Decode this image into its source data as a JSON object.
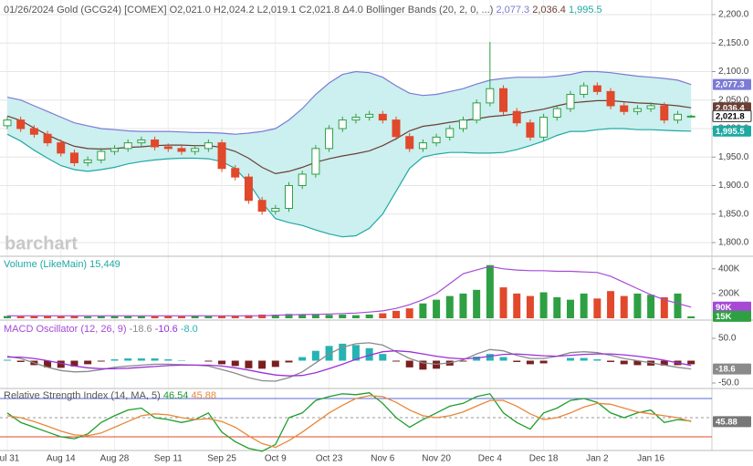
{
  "chart_data": [
    {
      "type": "candlestick",
      "title": "01/26/2024 Gold (GCG24) [COMEX]",
      "summary": [
        "O2,021.0",
        "H2,024.2",
        "L2,019.1",
        "C2,021.8",
        "Δ4.0"
      ],
      "watermark": "barchart",
      "categories": [
        "Jul 31",
        null,
        null,
        null,
        "Aug 14",
        null,
        null,
        null,
        "Aug 28",
        null,
        null,
        null,
        "Sep 11",
        null,
        null,
        null,
        "Sep 25",
        null,
        null,
        null,
        "Oct 9",
        null,
        null,
        null,
        "Oct 23",
        null,
        null,
        null,
        "Nov 6",
        null,
        null,
        null,
        "Nov 20",
        null,
        null,
        null,
        "Dec 4",
        null,
        null,
        null,
        "Dec 18",
        null,
        null,
        null,
        "Jan 2",
        null,
        null,
        null,
        "Jan 16",
        null,
        null,
        null
      ],
      "open": [
        2005,
        2015,
        2000,
        1990,
        1975,
        1957,
        1940,
        1945,
        1960,
        1965,
        1975,
        1980,
        1968,
        1965,
        1960,
        1965,
        1975,
        1930,
        1915,
        1874,
        1855,
        1860,
        1900,
        1920,
        1965,
        2000,
        2015,
        2020,
        2025,
        2015,
        1986,
        1965,
        1975,
        1985,
        2000,
        2015,
        2045,
        2070,
        2030,
        2010,
        1985,
        2020,
        2035,
        2060,
        2075,
        2065,
        2040,
        2030,
        2035,
        2040,
        2015,
        2021.0
      ],
      "high": [
        2021,
        2021,
        2006,
        1996,
        1981,
        1963,
        1951,
        1966,
        1971,
        1981,
        1986,
        1986,
        1974,
        1971,
        1971,
        1981,
        1981,
        1936,
        1921,
        1880,
        1866,
        1906,
        1926,
        1971,
        2006,
        2021,
        2026,
        2031,
        2031,
        2021,
        1992,
        1981,
        1991,
        2006,
        2021,
        2051,
        2152,
        2076,
        2036,
        2016,
        2026,
        2041,
        2066,
        2081,
        2081,
        2071,
        2046,
        2041,
        2046,
        2046,
        2031,
        2024.2
      ],
      "low": [
        1999,
        1994,
        1984,
        1969,
        1951,
        1934,
        1934,
        1939,
        1954,
        1959,
        1969,
        1962,
        1959,
        1954,
        1954,
        1959,
        1924,
        1909,
        1868,
        1849,
        1849,
        1854,
        1894,
        1914,
        1959,
        1994,
        2009,
        2014,
        2009,
        1980,
        1959,
        1959,
        1969,
        1979,
        1994,
        2009,
        2039,
        2024,
        2004,
        1979,
        1979,
        2014,
        2029,
        2054,
        2059,
        2034,
        2024,
        2024,
        2029,
        2009,
        2009,
        2019.1
      ],
      "close": [
        2015,
        2000,
        1990,
        1975,
        1957,
        1940,
        1945,
        1960,
        1965,
        1975,
        1980,
        1968,
        1965,
        1960,
        1965,
        1975,
        1930,
        1915,
        1874,
        1855,
        1860,
        1900,
        1920,
        1965,
        2000,
        2015,
        2020,
        2025,
        2015,
        1986,
        1965,
        1975,
        1985,
        2000,
        2015,
        2045,
        2070,
        2030,
        2010,
        1985,
        2020,
        2035,
        2060,
        2075,
        2065,
        2040,
        2030,
        2035,
        2040,
        2015,
        2025,
        2021.8
      ],
      "close_label": "2,021.8",
      "up_color": "#2ea043",
      "down_color": "#e0492b",
      "overlay_title": "Bollinger Bands (20, 2, 0, ...)",
      "band_fill": "#ccefef",
      "bands": [
        {
          "color": "#7b7bd6",
          "last_label": "2,077.3",
          "values": [
            2055,
            2050,
            2040,
            2030,
            2020,
            2010,
            2005,
            2000,
            1998,
            1996,
            1995,
            1995,
            1995,
            1994,
            1993,
            1993,
            1992,
            1990,
            1992,
            1995,
            2000,
            2015,
            2035,
            2060,
            2080,
            2095,
            2100,
            2098,
            2090,
            2075,
            2062,
            2058,
            2060,
            2065,
            2070,
            2078,
            2085,
            2088,
            2090,
            2090,
            2090,
            2092,
            2095,
            2100,
            2100,
            2098,
            2095,
            2092,
            2090,
            2088,
            2085,
            2077.3
          ]
        },
        {
          "color": "#6b3f35",
          "last_label": "2,036.4",
          "values": [
            2022,
            2014,
            2001,
            1989,
            1978,
            1969,
            1965,
            1964,
            1965,
            1967,
            1968,
            1970,
            1971,
            1971,
            1970,
            1970,
            1967,
            1960,
            1948,
            1932,
            1921,
            1925,
            1932,
            1941,
            1947,
            1952,
            1956,
            1961,
            1970,
            1982,
            1996,
            2004,
            2007,
            2011,
            2014,
            2017,
            2021,
            2023,
            2026,
            2030,
            2034,
            2040,
            2045,
            2047,
            2049,
            2049,
            2047,
            2045,
            2044,
            2042,
            2040,
            2036.4
          ]
        },
        {
          "color": "#1fa9a3",
          "last_label": "1,995.5",
          "values": [
            1990,
            1978,
            1962,
            1948,
            1935,
            1928,
            1925,
            1928,
            1932,
            1938,
            1942,
            1945,
            1947,
            1948,
            1948,
            1947,
            1942,
            1930,
            1905,
            1870,
            1842,
            1835,
            1830,
            1822,
            1815,
            1810,
            1812,
            1825,
            1850,
            1890,
            1930,
            1950,
            1955,
            1958,
            1958,
            1957,
            1957,
            1958,
            1963,
            1970,
            1978,
            1988,
            1995,
            1995,
            1998,
            2000,
            2000,
            1998,
            1998,
            1997,
            1996,
            1995.5
          ]
        }
      ],
      "ylim": [
        1780,
        2215
      ],
      "yticks": [
        {
          "value": 2200,
          "label": "2,200.0"
        },
        {
          "value": 2150,
          "label": "2,150.0"
        },
        {
          "value": 2100,
          "label": "2,100.0"
        },
        {
          "value": 2050,
          "label": "2,050.0"
        },
        {
          "value": 2000,
          "label": "2,000.0"
        },
        {
          "value": 1950,
          "label": "1,950.0"
        },
        {
          "value": 1900,
          "label": "1,900.0"
        },
        {
          "value": 1850,
          "label": "1,850.0"
        },
        {
          "value": 1800,
          "label": "1,800.0"
        }
      ],
      "grid": true
    },
    {
      "type": "bar",
      "title": "Volume (LikeMain)",
      "last_label": "15,449",
      "axis_label": "15K",
      "title_color": "#1fa9a3",
      "values": [
        18000,
        15000,
        16000,
        17000,
        15000,
        18000,
        14000,
        16000,
        15000,
        17000,
        16000,
        15000,
        17000,
        16000,
        18000,
        17000,
        20000,
        22000,
        25000,
        30000,
        28000,
        35000,
        30000,
        32000,
        28000,
        30000,
        25000,
        30000,
        40000,
        60000,
        80000,
        120000,
        150000,
        180000,
        200000,
        230000,
        430000,
        250000,
        200000,
        180000,
        210000,
        170000,
        150000,
        200000,
        160000,
        220000,
        180000,
        200000,
        190000,
        170000,
        200000,
        15449
      ],
      "ma": {
        "color": "#a64ad6",
        "axis_label": "90K",
        "values": [
          20000,
          20000,
          20000,
          20000,
          20000,
          20000,
          20000,
          20000,
          20000,
          20000,
          20000,
          20000,
          20000,
          20000,
          20000,
          20000,
          20000,
          20000,
          20000,
          20000,
          25000,
          27000,
          30000,
          32000,
          35000,
          38000,
          42000,
          50000,
          60000,
          80000,
          110000,
          150000,
          200000,
          280000,
          360000,
          390000,
          420000,
          400000,
          390000,
          385000,
          385000,
          380000,
          380000,
          375000,
          370000,
          340000,
          290000,
          240000,
          190000,
          150000,
          120000,
          90000
        ]
      },
      "ylim": [
        0,
        450000
      ],
      "yticks": [
        {
          "value": 400000,
          "label": "400K"
        },
        {
          "value": 200000,
          "label": "200K"
        }
      ]
    },
    {
      "type": "macd",
      "title": "MACD Oscillator (12, 26, 9)",
      "title_color": "#a64ad6",
      "series": [
        {
          "color": "#8a8a8a",
          "last_label": "-18.6",
          "values": [
            10,
            5,
            -5,
            -15,
            -22,
            -25,
            -24,
            -20,
            -15,
            -12,
            -10,
            -8,
            -8,
            -9,
            -10,
            -12,
            -20,
            -28,
            -38,
            -45,
            -46,
            -38,
            -25,
            -5,
            15,
            30,
            38,
            40,
            35,
            20,
            5,
            -5,
            -8,
            -5,
            2,
            15,
            25,
            22,
            12,
            5,
            5,
            10,
            18,
            20,
            18,
            12,
            5,
            0,
            -5,
            -10,
            -15,
            -18.6
          ]
        },
        {
          "color": "#9b30d9",
          "last_label": "-10.6",
          "values": [
            8,
            8,
            5,
            0,
            -6,
            -12,
            -16,
            -18,
            -18,
            -17,
            -15,
            -13,
            -11,
            -10,
            -10,
            -10,
            -12,
            -16,
            -21,
            -27,
            -32,
            -34,
            -33,
            -27,
            -18,
            -8,
            3,
            12,
            20,
            22,
            20,
            15,
            10,
            6,
            4,
            6,
            10,
            14,
            15,
            13,
            11,
            10,
            12,
            14,
            15,
            15,
            13,
            10,
            6,
            1,
            -5,
            -10.6
          ]
        }
      ],
      "histogram": {
        "pos_color": "#27b3b3",
        "neg_color": "#7a1f1f",
        "last_label": "-8.0",
        "values": [
          2,
          -3,
          -10,
          -15,
          -16,
          -13,
          -8,
          -2,
          3,
          5,
          5,
          5,
          3,
          1,
          0,
          -2,
          -8,
          -12,
          -17,
          -18,
          -14,
          -4,
          8,
          22,
          33,
          38,
          35,
          28,
          15,
          -2,
          -15,
          -20,
          -18,
          -11,
          -2,
          9,
          15,
          8,
          -3,
          -8,
          -6,
          0,
          6,
          6,
          3,
          -3,
          -8,
          -10,
          -11,
          -11,
          -10,
          -8.0
        ]
      },
      "ylim": [
        -60,
        75
      ],
      "yticks": [
        {
          "value": 50,
          "label": "50.0"
        },
        {
          "value": -50,
          "label": "-50.0"
        }
      ]
    },
    {
      "type": "line",
      "title": "Relative Strength Index (14, MA, 5)",
      "title_color": "#555555",
      "series": [
        {
          "color": "#1f9e2c",
          "last_label": "46.54",
          "values": [
            55,
            45,
            40,
            35,
            30,
            28,
            33,
            45,
            52,
            58,
            60,
            50,
            48,
            45,
            48,
            55,
            35,
            25,
            18,
            15,
            22,
            50,
            55,
            68,
            72,
            75,
            74,
            76,
            65,
            50,
            40,
            48,
            55,
            62,
            65,
            72,
            75,
            55,
            45,
            38,
            55,
            60,
            68,
            70,
            66,
            55,
            50,
            55,
            58,
            45,
            48,
            46.54
          ]
        },
        {
          "color": "#e8873a",
          "last_label": "45.88",
          "values": [
            52,
            50,
            46,
            41,
            36,
            32,
            31,
            34,
            40,
            46,
            52,
            54,
            53,
            50,
            48,
            49,
            46,
            40,
            31,
            23,
            19,
            26,
            35,
            45,
            55,
            63,
            70,
            73,
            72,
            66,
            58,
            52,
            50,
            52,
            56,
            62,
            68,
            68,
            62,
            54,
            48,
            50,
            55,
            61,
            65,
            64,
            60,
            56,
            54,
            52,
            50,
            45.88
          ]
        }
      ],
      "ylim": [
        20,
        80
      ],
      "levels": [
        {
          "value": 70,
          "color": "#5a6bd6"
        },
        {
          "value": 50,
          "color": "#999999"
        },
        {
          "value": 30,
          "color": "#e0492b"
        }
      ]
    }
  ]
}
